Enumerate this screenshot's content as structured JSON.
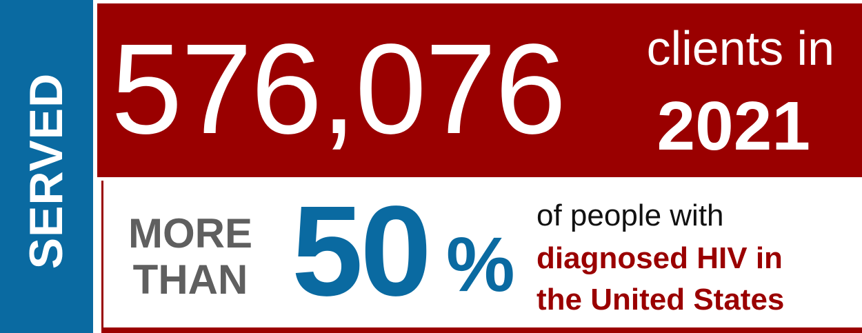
{
  "side": {
    "label": "SERVED"
  },
  "headline": {
    "number": "576,076",
    "clients_in": "clients in",
    "year": "2021"
  },
  "stat": {
    "more_than_line1": "MORE",
    "more_than_line2": "THAN",
    "percent_value": "50",
    "percent_sign": "%",
    "desc_line1": "of people with",
    "desc_line2": "diagnosed HIV in",
    "desc_line3": "the United States"
  },
  "colors": {
    "blue": "#0a6aa1",
    "red": "#9a0000",
    "gray": "#5f5f5f"
  }
}
